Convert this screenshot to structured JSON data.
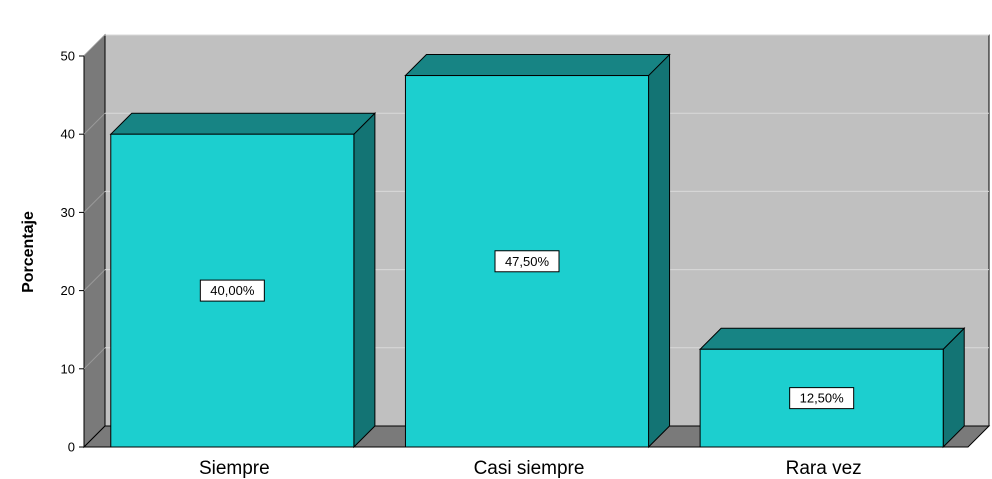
{
  "chart_data": {
    "type": "bar",
    "categories": [
      "Siempre",
      "Casi siempre",
      "Rara vez"
    ],
    "values": [
      40.0,
      47.5,
      12.5
    ],
    "data_labels": [
      "40,00%",
      "47,50%",
      "12,50%"
    ],
    "ylabel": "Porcentaje",
    "ylim": [
      0,
      50
    ],
    "yticks": [
      "0",
      "10",
      "20",
      "30",
      "40",
      "50"
    ],
    "grid": true,
    "three_d": true,
    "colors": {
      "bar_front": "#1ccfcf",
      "bar_top": "#178484",
      "bar_side": "#137474",
      "wall": "#c0c0c0",
      "floor_side": "#7a7a7a"
    }
  }
}
